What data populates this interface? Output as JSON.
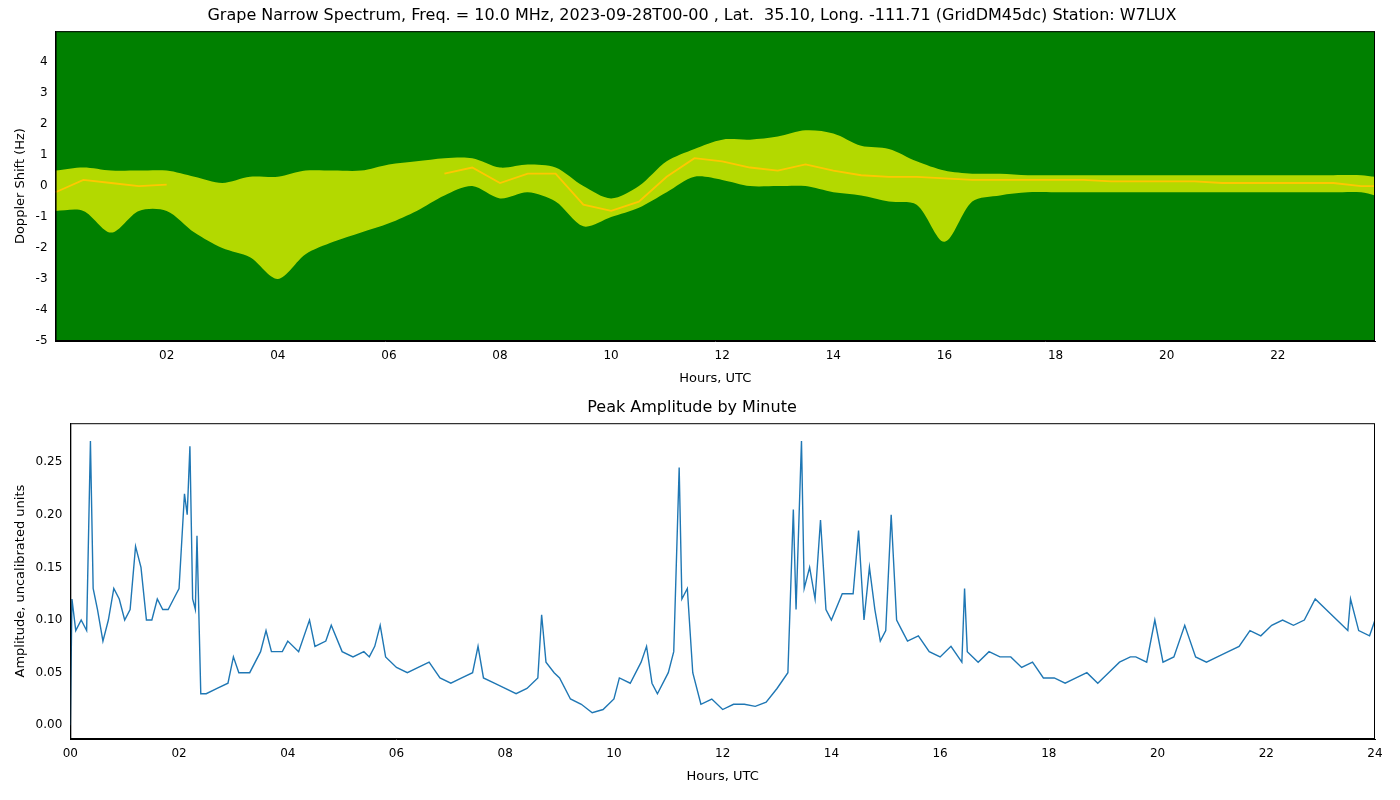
{
  "chart_data": [
    {
      "type": "line",
      "title": "Grape Narrow Spectrum, Freq. = 10.0 MHz, 2023-09-28T00-00 , Lat.  35.10, Long. -111.71 (GridDM45dc) Station: W7LUX",
      "x_label": "Hours, UTC",
      "y_label": "Doppler Shift (Hz)",
      "x": [
        0,
        0.5,
        1,
        1.5,
        2,
        2.5,
        3,
        3.5,
        4,
        4.5,
        5,
        5.5,
        6,
        6.5,
        7,
        7.5,
        8,
        8.5,
        9,
        9.5,
        10,
        10.5,
        11,
        11.5,
        12,
        12.5,
        13,
        13.5,
        14,
        14.5,
        15,
        15.5,
        16,
        16.5,
        17,
        17.5,
        18,
        18.5,
        19,
        19.5,
        20,
        20.5,
        21,
        21.5,
        22,
        22.5,
        23,
        23.5,
        23.75
      ],
      "series": [
        {
          "type": "band",
          "color": "#ffff00",
          "values": [
            0.5,
            0.6,
            0.5,
            0.5,
            0.5,
            0.3,
            0.1,
            0.3,
            0.3,
            0.5,
            0.5,
            0.5,
            0.7,
            0.8,
            0.9,
            0.9,
            0.6,
            0.7,
            0.6,
            0.0,
            -0.4,
            0.0,
            0.8,
            1.2,
            1.5,
            1.5,
            1.6,
            1.8,
            1.7,
            1.3,
            1.2,
            0.8,
            0.5,
            0.4,
            0.4,
            0.35,
            0.35,
            0.35,
            0.35,
            0.35,
            0.35,
            0.35,
            0.35,
            0.35,
            0.35,
            0.35,
            0.35,
            0.35,
            0.3
          ],
          "lower": [
            -0.8,
            -0.8,
            -1.5,
            -0.8,
            -0.8,
            -1.5,
            -2.0,
            -2.3,
            -3.0,
            -2.2,
            -1.8,
            -1.5,
            -1.2,
            -0.8,
            -0.3,
            0.0,
            -0.4,
            -0.2,
            -0.5,
            -1.3,
            -1.0,
            -0.7,
            -0.2,
            0.3,
            0.2,
            0.0,
            0.0,
            0.0,
            -0.2,
            -0.3,
            -0.5,
            -0.6,
            -1.8,
            -0.5,
            -0.3,
            -0.2,
            -0.2,
            -0.2,
            -0.2,
            -0.2,
            -0.2,
            -0.2,
            -0.2,
            -0.2,
            -0.2,
            -0.2,
            -0.2,
            -0.2,
            -0.3
          ]
        },
        {
          "type": "line",
          "color": "#ff4500",
          "values": [
            -0.2,
            0.2,
            0.1,
            0.0,
            0.05,
            null,
            null,
            null,
            null,
            null,
            null,
            null,
            null,
            null,
            0.4,
            0.6,
            0.1,
            0.4,
            0.4,
            -0.6,
            -0.8,
            -0.5,
            0.3,
            0.9,
            0.8,
            0.6,
            0.5,
            0.7,
            0.5,
            0.35,
            0.3,
            0.3,
            0.25,
            0.2,
            0.2,
            0.2,
            0.2,
            0.2,
            0.15,
            0.15,
            0.15,
            0.15,
            0.1,
            0.1,
            0.1,
            0.1,
            0.1,
            0.0,
            0.0
          ]
        }
      ],
      "xlim": [
        0,
        23.75
      ],
      "xticks": [
        {
          "value": 2,
          "label": "02"
        },
        {
          "value": 4,
          "label": "04"
        },
        {
          "value": 6,
          "label": "06"
        },
        {
          "value": 8,
          "label": "08"
        },
        10,
        12,
        14,
        16,
        18,
        20,
        22
      ],
      "ylim": [
        -5,
        5
      ],
      "yticks": [
        -5,
        -4,
        -3,
        -2,
        -1,
        0,
        1,
        2,
        3,
        4
      ],
      "grid": false
    },
    {
      "type": "line",
      "title": "Peak Amplitude by Minute",
      "x_label": "Hours, UTC",
      "y_label": "Amplitude, uncalibrated units",
      "x": [
        0.0,
        0.03,
        0.1,
        0.2,
        0.3,
        0.37,
        0.42,
        0.5,
        0.6,
        0.7,
        0.8,
        0.9,
        1.0,
        1.1,
        1.2,
        1.3,
        1.4,
        1.5,
        1.6,
        1.7,
        1.8,
        1.9,
        2.0,
        2.1,
        2.15,
        2.2,
        2.25,
        2.3,
        2.33,
        2.4,
        2.5,
        2.7,
        2.9,
        3.0,
        3.1,
        3.3,
        3.5,
        3.6,
        3.7,
        3.9,
        4.0,
        4.2,
        4.4,
        4.5,
        4.7,
        4.8,
        5.0,
        5.2,
        5.4,
        5.5,
        5.6,
        5.7,
        5.8,
        6.0,
        6.2,
        6.4,
        6.6,
        6.8,
        7.0,
        7.2,
        7.4,
        7.5,
        7.6,
        7.8,
        8.0,
        8.2,
        8.4,
        8.6,
        8.67,
        8.75,
        8.9,
        9.0,
        9.2,
        9.4,
        9.6,
        9.8,
        10.0,
        10.1,
        10.3,
        10.5,
        10.6,
        10.7,
        10.8,
        11.0,
        11.1,
        11.2,
        11.25,
        11.35,
        11.45,
        11.6,
        11.8,
        12.0,
        12.2,
        12.4,
        12.6,
        12.8,
        13.0,
        13.2,
        13.3,
        13.35,
        13.45,
        13.5,
        13.6,
        13.7,
        13.8,
        13.9,
        14.0,
        14.2,
        14.4,
        14.5,
        14.6,
        14.7,
        14.8,
        14.9,
        15.0,
        15.1,
        15.2,
        15.3,
        15.4,
        15.6,
        15.8,
        16.0,
        16.2,
        16.4,
        16.45,
        16.5,
        16.7,
        16.9,
        17.1,
        17.3,
        17.5,
        17.7,
        17.9,
        18.1,
        18.3,
        18.5,
        18.7,
        18.9,
        19.1,
        19.3,
        19.5,
        19.6,
        19.8,
        19.95,
        20.1,
        20.3,
        20.5,
        20.7,
        20.9,
        21.1,
        21.3,
        21.5,
        21.7,
        21.9,
        22.1,
        22.3,
        22.5,
        22.7,
        22.9,
        23.1,
        23.3,
        23.5,
        23.55,
        23.7,
        23.9,
        24.0
      ],
      "series": [
        {
          "color": "#1f77b4",
          "values": [
            0.0,
            0.12,
            0.09,
            0.1,
            0.09,
            0.27,
            0.13,
            0.11,
            0.08,
            0.1,
            0.13,
            0.12,
            0.1,
            0.11,
            0.17,
            0.15,
            0.1,
            0.1,
            0.12,
            0.11,
            0.11,
            0.12,
            0.13,
            0.22,
            0.2,
            0.265,
            0.12,
            0.11,
            0.18,
            0.03,
            0.03,
            0.035,
            0.04,
            0.065,
            0.05,
            0.05,
            0.07,
            0.09,
            0.07,
            0.07,
            0.08,
            0.07,
            0.1,
            0.075,
            0.08,
            0.095,
            0.07,
            0.065,
            0.07,
            0.065,
            0.075,
            0.095,
            0.065,
            0.055,
            0.05,
            0.055,
            0.06,
            0.045,
            0.04,
            0.045,
            0.05,
            0.075,
            0.045,
            0.04,
            0.035,
            0.03,
            0.035,
            0.045,
            0.105,
            0.06,
            0.05,
            0.045,
            0.025,
            0.02,
            0.012,
            0.015,
            0.025,
            0.045,
            0.04,
            0.06,
            0.075,
            0.04,
            0.03,
            0.05,
            0.07,
            0.245,
            0.12,
            0.13,
            0.05,
            0.02,
            0.025,
            0.015,
            0.02,
            0.02,
            0.018,
            0.022,
            0.035,
            0.05,
            0.205,
            0.11,
            0.27,
            0.13,
            0.15,
            0.12,
            0.195,
            0.11,
            0.1,
            0.125,
            0.125,
            0.185,
            0.1,
            0.15,
            0.11,
            0.08,
            0.09,
            0.2,
            0.1,
            0.09,
            0.08,
            0.085,
            0.07,
            0.065,
            0.075,
            0.06,
            0.13,
            0.07,
            0.06,
            0.07,
            0.065,
            0.065,
            0.055,
            0.06,
            0.045,
            0.045,
            0.04,
            0.045,
            0.05,
            0.04,
            0.05,
            0.06,
            0.065,
            0.065,
            0.06,
            0.1,
            0.06,
            0.065,
            0.095,
            0.065,
            0.06,
            0.065,
            0.07,
            0.075,
            0.09,
            0.085,
            0.095,
            0.1,
            0.095,
            0.1,
            0.12,
            0.11,
            0.1,
            0.09,
            0.12,
            0.09,
            0.085,
            0.1
          ]
        }
      ],
      "xlim": [
        0,
        24
      ],
      "xticks": [
        {
          "value": 0,
          "label": "00"
        },
        {
          "value": 2,
          "label": "02"
        },
        {
          "value": 4,
          "label": "04"
        },
        {
          "value": 6,
          "label": "06"
        },
        {
          "value": 8,
          "label": "08"
        },
        10,
        12,
        14,
        16,
        18,
        20,
        22,
        24
      ],
      "ylim": [
        -0.013,
        0.287
      ],
      "yticks": [
        {
          "value": 0,
          "label": "0.00"
        },
        {
          "value": 0.05,
          "label": "0.05"
        },
        {
          "value": 0.1,
          "label": "0.10"
        },
        {
          "value": 0.15,
          "label": "0.15"
        },
        {
          "value": 0.2,
          "label": "0.20"
        },
        {
          "value": 0.25,
          "label": "0.25"
        }
      ],
      "grid": false
    }
  ]
}
